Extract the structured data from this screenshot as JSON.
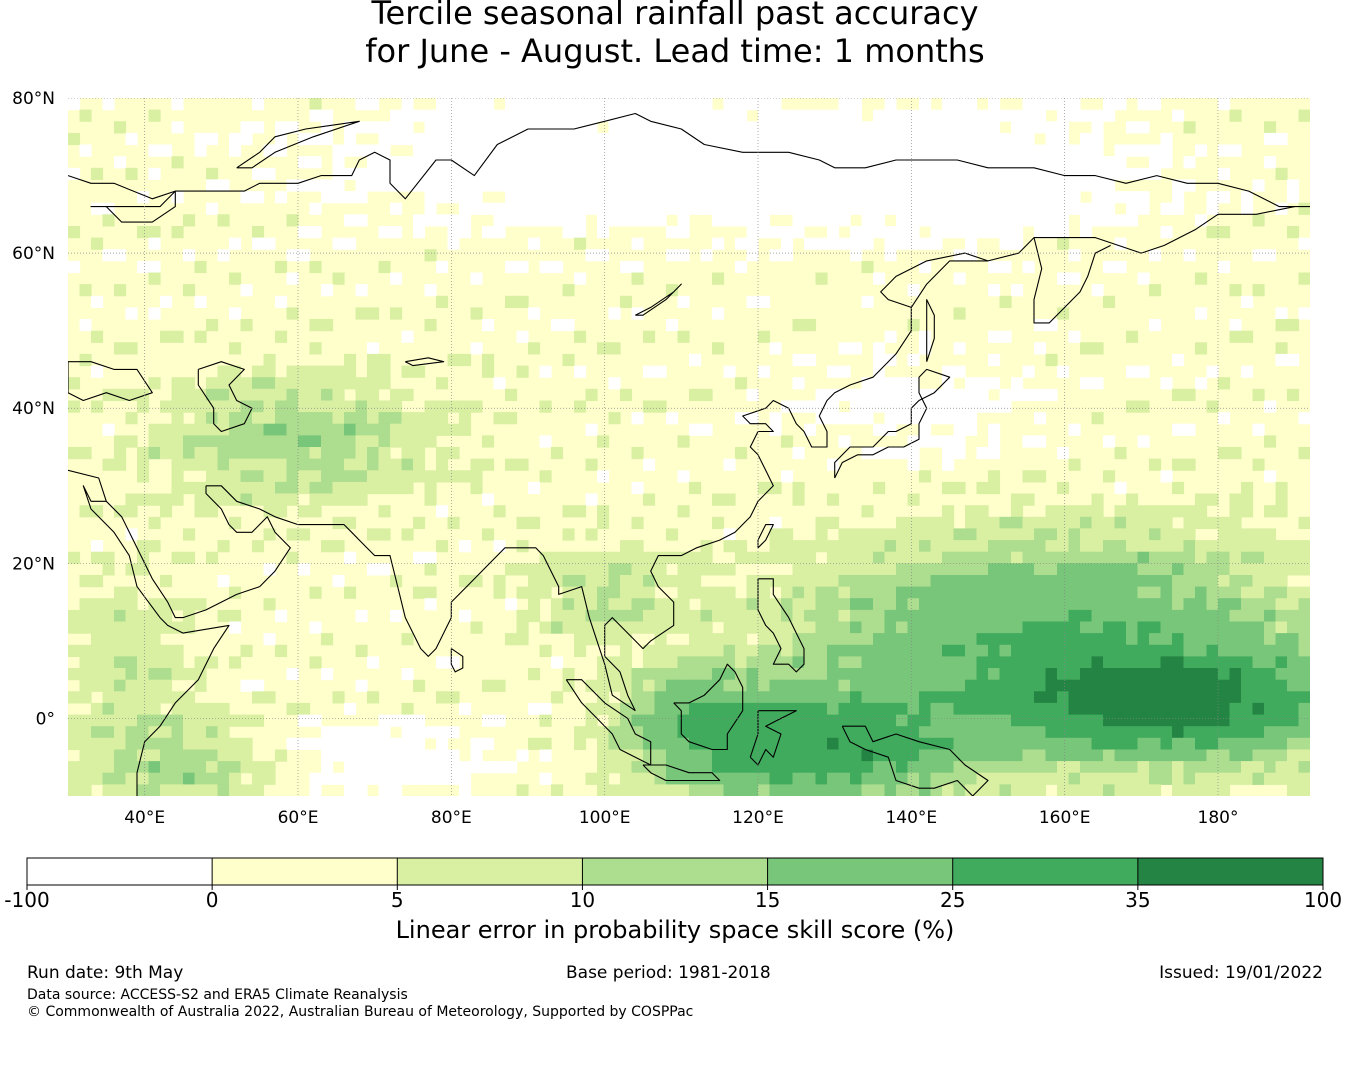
{
  "title": {
    "line1": "Tercile seasonal rainfall past accuracy",
    "line2": "for June - August. Lead time: 1 months"
  },
  "map": {
    "lat_range": [
      -10,
      80
    ],
    "lon_range": [
      30,
      192
    ],
    "lat_ticks": [
      {
        "value": 80,
        "label": "80°N"
      },
      {
        "value": 60,
        "label": "60°N"
      },
      {
        "value": 40,
        "label": "40°N"
      },
      {
        "value": 20,
        "label": "20°N"
      },
      {
        "value": 0,
        "label": "0°"
      }
    ],
    "lon_ticks": [
      {
        "value": 40,
        "label": "40°E"
      },
      {
        "value": 60,
        "label": "60°E"
      },
      {
        "value": 80,
        "label": "80°E"
      },
      {
        "value": 100,
        "label": "100°E"
      },
      {
        "value": 120,
        "label": "120°E"
      },
      {
        "value": 140,
        "label": "140°E"
      },
      {
        "value": 160,
        "label": "160°E"
      },
      {
        "value": 180,
        "label": "180°"
      }
    ],
    "gridlines": true,
    "coastlines": true
  },
  "colorbar": {
    "bounds": [
      "-100",
      "0",
      "5",
      "10",
      "15",
      "25",
      "35",
      "100"
    ],
    "colors": [
      "#ffffff",
      "#ffffcc",
      "#d9f0a3",
      "#addd8e",
      "#78c679",
      "#41ab5d",
      "#238443"
    ],
    "label": "Linear error in probability space skill score (%)"
  },
  "footer": {
    "run_date": "Run date: 9th May",
    "base_period": "Base period: 1981-2018",
    "issued": "Issued: 19/01/2022",
    "data_source": "Data source: ACCESS-S2 and ERA5 Climate Reanalysis",
    "copyright": "© Commonwealth of Australia 2022, Australian Bureau of Meteorology, Supported by COSPPac"
  }
}
